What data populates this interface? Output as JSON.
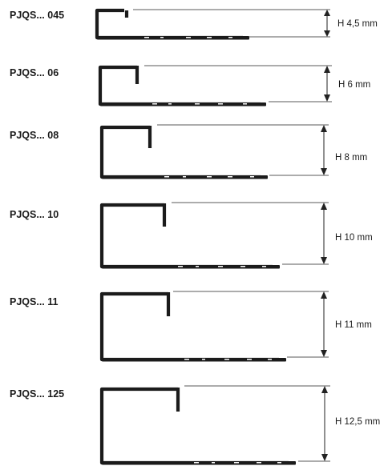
{
  "profiles": [
    {
      "code": "PJQS... 045",
      "height_label": "H 4,5 mm"
    },
    {
      "code": "PJQS... 06",
      "height_label": "H 6 mm"
    },
    {
      "code": "PJQS... 08",
      "height_label": "H 8 mm"
    },
    {
      "code": "PJQS... 10",
      "height_label": "H 10 mm"
    },
    {
      "code": "PJQS... 11",
      "height_label": "H 11 mm"
    },
    {
      "code": "PJQS... 125",
      "height_label": "H 12,5 mm"
    }
  ],
  "colors": {
    "profile": "#1b1b1b",
    "lines": "#222222",
    "background": "#ffffff"
  }
}
